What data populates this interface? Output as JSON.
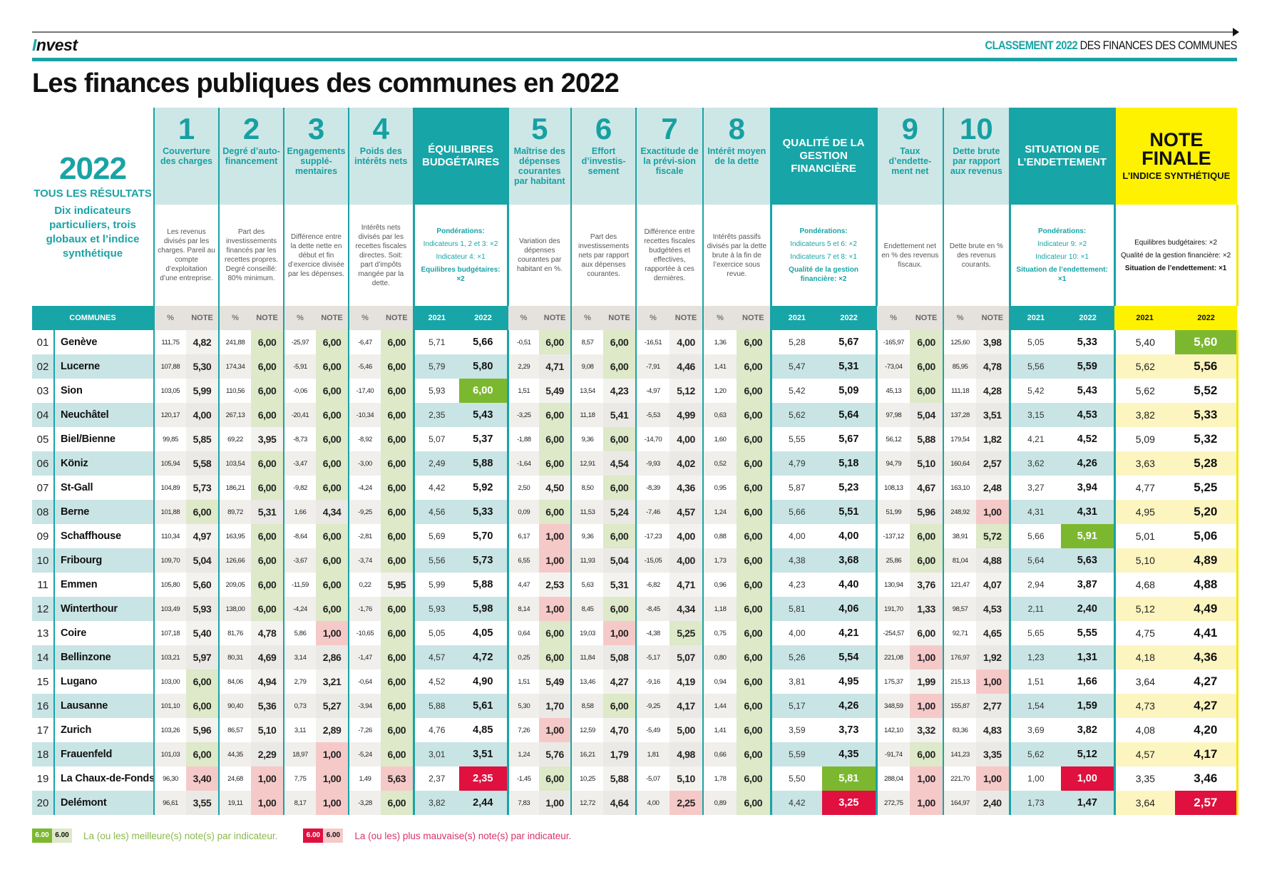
{
  "header": {
    "brand": "Invest",
    "section_highlight": "CLASSEMENT 2022",
    "section_rest": "DES FINANCES DES COMMUNES",
    "title": "Les finances publiques des communes en 2022"
  },
  "intro": {
    "year": "2022",
    "subtitle": "TOUS LES RÉSULTATS",
    "description": "Dix indicateurs particuliers, trois globaux et l’indice synthétique"
  },
  "colors": {
    "teal": "#1aa3a5",
    "yellow": "#fff200",
    "best": "#7cb82f",
    "best_light": "#dde9c8",
    "worst": "#e0103f",
    "worst_light": "#f6c9c9"
  },
  "sub_labels": {
    "communes": "COMMUNES",
    "pct": "%",
    "note": "NOTE",
    "y2021": "2021",
    "y2022": "2022"
  },
  "groups": [
    {
      "type": "ind",
      "num": "1",
      "title": "Couverture des charges",
      "desc": "Les revenus divisés par les charges. Pareil au compte d’exploitation d’une entreprise."
    },
    {
      "type": "ind",
      "num": "2",
      "title": "Degré d’auto-financement",
      "desc": "Part des investissements financés par les recettes propres. Degré conseillé: 80% minimum."
    },
    {
      "type": "ind",
      "num": "3",
      "title": "Engagements supplé-mentaires",
      "desc": "Différence entre la dette nette en début et fin d’exercice divisée par les dépenses."
    },
    {
      "type": "ind",
      "num": "4",
      "title": "Poids des intérêts nets",
      "desc": "Intérêts nets divisés par les recettes fiscales directes. Soit: part d’impôts mangée par la dette."
    },
    {
      "type": "comp",
      "title": "ÉQUILIBRES BUDGÉTAIRES",
      "weights_label": "Pondérations:",
      "weights": [
        "Indicateurs 1, 2 et 3: ×2",
        "Indicateur 4: ×1"
      ],
      "result": "Equilibres budgétaires: ×2"
    },
    {
      "type": "ind",
      "num": "5",
      "title": "Maîtrise des dépenses courantes par habitant",
      "desc": "Variation des dépenses courantes par habitant en %."
    },
    {
      "type": "ind",
      "num": "6",
      "title": "Effort d’investis-sement",
      "desc": "Part des investissements nets par rapport aux dépenses courantes."
    },
    {
      "type": "ind",
      "num": "7",
      "title": "Exactitude de la prévi-sion fiscale",
      "desc": "Différence entre recettes fiscales budgétées et effectives, rapportée à ces dernières."
    },
    {
      "type": "ind",
      "num": "8",
      "title": "Intérêt moyen de la dette",
      "desc": "Intérêts passifs divisés par la dette brute à la fin de l’exercice sous revue."
    },
    {
      "type": "comp",
      "title": "QUALITÉ DE LA GESTION FINANCIÈRE",
      "weights_label": "Pondérations:",
      "weights": [
        "Indicateurs 5 et 6: ×2",
        "Indicateurs 7 et 8: ×1"
      ],
      "result": "Qualité de la gestion financière: ×2"
    },
    {
      "type": "ind",
      "num": "9",
      "title": "Taux d’endette-ment net",
      "desc": "Endettement net en % des revenus fiscaux."
    },
    {
      "type": "ind",
      "num": "10",
      "title": "Dette brute par rapport aux revenus",
      "desc": "Dette brute en % des revenus courants."
    },
    {
      "type": "comp",
      "title": "SITUATION DE L’ENDETTEMENT",
      "weights_label": "Pondérations:",
      "weights": [
        "Indicateur 9: ×2",
        "Indicateur 10: ×1"
      ],
      "result": "Situation de l’endettement: ×1"
    },
    {
      "type": "final",
      "title": "NOTE FINALE",
      "subtitle": "L’INDICE SYNTHÉTIQUE",
      "weights": [
        "Equilibres budgétaires: ×2",
        "Qualité de la gestion financière: ×2"
      ],
      "result": "Situation de l’endettement: ×1"
    }
  ],
  "rows": [
    {
      "rank": "01",
      "name": "Genève",
      "v": [
        "111,75",
        "4,82",
        "241,88",
        "6,00",
        "-25,97",
        "6,00",
        "-6,47",
        "6,00",
        "5,71",
        "5,66",
        "-0,51",
        "6,00",
        "8,57",
        "6,00",
        "-16,51",
        "4,00",
        "1,36",
        "6,00",
        "5,28",
        "5,67",
        "-165,97",
        "6,00",
        "125,60",
        "3,98",
        "5,05",
        "5,33",
        "5,40",
        "5,60"
      ],
      "hl": {
        "3": "b",
        "5": "b",
        "7": "b",
        "11": "b",
        "13": "b",
        "17": "b",
        "21": "b",
        "27": "B"
      }
    },
    {
      "rank": "02",
      "name": "Lucerne",
      "v": [
        "107,88",
        "5,30",
        "174,34",
        "6,00",
        "-5,91",
        "6,00",
        "-5,46",
        "6,00",
        "5,79",
        "5,80",
        "2,29",
        "4,71",
        "9,08",
        "6,00",
        "-7,91",
        "4,46",
        "1,41",
        "6,00",
        "5,47",
        "5,31",
        "-73,04",
        "6,00",
        "85,95",
        "4,78",
        "5,56",
        "5,59",
        "5,62",
        "5,56"
      ],
      "hl": {
        "3": "b",
        "5": "b",
        "7": "b",
        "13": "b",
        "17": "b",
        "21": "b"
      }
    },
    {
      "rank": "03",
      "name": "Sion",
      "v": [
        "103,05",
        "5,99",
        "110,56",
        "6,00",
        "-0,06",
        "6,00",
        "-17,40",
        "6,00",
        "5,93",
        "6,00",
        "1,51",
        "5,49",
        "13,54",
        "4,23",
        "-4,97",
        "5,12",
        "1,20",
        "6,00",
        "5,42",
        "5,09",
        "45,13",
        "6,00",
        "111,18",
        "4,28",
        "5,42",
        "5,43",
        "5,62",
        "5,52"
      ],
      "hl": {
        "3": "b",
        "5": "b",
        "7": "b",
        "9": "B",
        "17": "b",
        "21": "b"
      }
    },
    {
      "rank": "04",
      "name": "Neuchâtel",
      "v": [
        "120,17",
        "4,00",
        "267,13",
        "6,00",
        "-20,41",
        "6,00",
        "-10,34",
        "6,00",
        "2,35",
        "5,43",
        "-3,25",
        "6,00",
        "11,18",
        "5,41",
        "-5,53",
        "4,99",
        "0,63",
        "6,00",
        "5,62",
        "5,64",
        "97,98",
        "5,04",
        "137,28",
        "3,51",
        "3,15",
        "4,53",
        "3,82",
        "5,33"
      ],
      "hl": {
        "3": "b",
        "5": "b",
        "7": "b",
        "11": "b",
        "17": "b"
      }
    },
    {
      "rank": "05",
      "name": "Biel/Bienne",
      "v": [
        "99,85",
        "5,85",
        "69,22",
        "3,95",
        "-8,73",
        "6,00",
        "-8,92",
        "6,00",
        "5,07",
        "5,37",
        "-1,88",
        "6,00",
        "9,36",
        "6,00",
        "-14,70",
        "4,00",
        "1,60",
        "6,00",
        "5,55",
        "5,67",
        "56,12",
        "5,88",
        "179,54",
        "1,82",
        "4,21",
        "4,52",
        "5,09",
        "5,32"
      ],
      "hl": {
        "5": "b",
        "7": "b",
        "11": "b",
        "13": "b",
        "17": "b"
      }
    },
    {
      "rank": "06",
      "name": "Köniz",
      "v": [
        "105,94",
        "5,58",
        "103,54",
        "6,00",
        "-3,47",
        "6,00",
        "-3,00",
        "6,00",
        "2,49",
        "5,88",
        "-1,64",
        "6,00",
        "12,91",
        "4,54",
        "-9,93",
        "4,02",
        "0,52",
        "6,00",
        "4,79",
        "5,18",
        "94,79",
        "5,10",
        "160,64",
        "2,57",
        "3,62",
        "4,26",
        "3,63",
        "5,28"
      ],
      "hl": {
        "3": "b",
        "5": "b",
        "7": "b",
        "11": "b",
        "17": "b"
      }
    },
    {
      "rank": "07",
      "name": "St-Gall",
      "v": [
        "104,89",
        "5,73",
        "186,21",
        "6,00",
        "-9,82",
        "6,00",
        "-4,24",
        "6,00",
        "4,42",
        "5,92",
        "2,50",
        "4,50",
        "8,50",
        "6,00",
        "-8,39",
        "4,36",
        "0,95",
        "6,00",
        "5,87",
        "5,23",
        "108,13",
        "4,67",
        "163,10",
        "2,48",
        "3,27",
        "3,94",
        "4,77",
        "5,25"
      ],
      "hl": {
        "3": "b",
        "5": "b",
        "7": "b",
        "13": "b",
        "17": "b"
      }
    },
    {
      "rank": "08",
      "name": "Berne",
      "v": [
        "101,88",
        "6,00",
        "89,72",
        "5,31",
        "1,66",
        "4,34",
        "-9,25",
        "6,00",
        "4,56",
        "5,33",
        "0,09",
        "6,00",
        "11,53",
        "5,24",
        "-7,46",
        "4,57",
        "1,24",
        "6,00",
        "5,66",
        "5,51",
        "51,99",
        "5,96",
        "248,92",
        "1,00",
        "4,31",
        "4,31",
        "4,95",
        "5,20"
      ],
      "hl": {
        "1": "b",
        "7": "b",
        "11": "b",
        "17": "b",
        "23": "w"
      }
    },
    {
      "rank": "09",
      "name": "Schaffhouse",
      "v": [
        "110,34",
        "4,97",
        "163,95",
        "6,00",
        "-8,64",
        "6,00",
        "-2,81",
        "6,00",
        "5,69",
        "5,70",
        "6,17",
        "1,00",
        "9,36",
        "6,00",
        "-17,23",
        "4,00",
        "0,88",
        "6,00",
        "4,00",
        "4,00",
        "-137,12",
        "6,00",
        "38,91",
        "5,72",
        "5,66",
        "5,91",
        "5,01",
        "5,06"
      ],
      "hl": {
        "3": "b",
        "5": "b",
        "7": "b",
        "11": "w",
        "13": "b",
        "17": "b",
        "21": "b",
        "23": "b",
        "25": "B"
      }
    },
    {
      "rank": "10",
      "name": "Fribourg",
      "v": [
        "109,70",
        "5,04",
        "126,66",
        "6,00",
        "-3,67",
        "6,00",
        "-3,74",
        "6,00",
        "5,56",
        "5,73",
        "6,55",
        "1,00",
        "11,93",
        "5,04",
        "-15,05",
        "4,00",
        "1,73",
        "6,00",
        "4,38",
        "3,68",
        "25,86",
        "6,00",
        "81,04",
        "4,88",
        "5,64",
        "5,63",
        "5,10",
        "4,89"
      ],
      "hl": {
        "3": "b",
        "5": "b",
        "7": "b",
        "11": "w",
        "17": "b",
        "21": "b"
      }
    },
    {
      "rank": "11",
      "name": "Emmen",
      "v": [
        "105,80",
        "5,60",
        "209,05",
        "6,00",
        "-11,59",
        "6,00",
        "0,22",
        "5,95",
        "5,99",
        "5,88",
        "4,47",
        "2,53",
        "5,63",
        "5,31",
        "-6,82",
        "4,71",
        "0,96",
        "6,00",
        "4,23",
        "4,40",
        "130,94",
        "3,76",
        "121,47",
        "4,07",
        "2,94",
        "3,87",
        "4,68",
        "4,88"
      ],
      "hl": {
        "3": "b",
        "5": "b",
        "17": "b"
      }
    },
    {
      "rank": "12",
      "name": "Winterthour",
      "v": [
        "103,49",
        "5,93",
        "138,00",
        "6,00",
        "-4,24",
        "6,00",
        "-1,76",
        "6,00",
        "5,93",
        "5,98",
        "8,14",
        "1,00",
        "8,45",
        "6,00",
        "-8,45",
        "4,34",
        "1,18",
        "6,00",
        "5,81",
        "4,06",
        "191,70",
        "1,33",
        "98,57",
        "4,53",
        "2,11",
        "2,40",
        "5,12",
        "4,49"
      ],
      "hl": {
        "3": "b",
        "5": "b",
        "7": "b",
        "11": "w",
        "13": "b",
        "17": "b"
      }
    },
    {
      "rank": "13",
      "name": "Coire",
      "v": [
        "107,18",
        "5,40",
        "81,76",
        "4,78",
        "5,86",
        "1,00",
        "-10,65",
        "6,00",
        "5,05",
        "4,05",
        "0,64",
        "6,00",
        "19,03",
        "1,00",
        "-4,38",
        "5,25",
        "0,75",
        "6,00",
        "4,00",
        "4,21",
        "-254,57",
        "6,00",
        "92,71",
        "4,65",
        "5,65",
        "5,55",
        "4,75",
        "4,41"
      ],
      "hl": {
        "5": "w",
        "7": "b",
        "11": "b",
        "13": "w",
        "15": "b",
        "17": "b"
      }
    },
    {
      "rank": "14",
      "name": "Bellinzone",
      "v": [
        "103,21",
        "5,97",
        "80,31",
        "4,69",
        "3,14",
        "2,86",
        "-1,47",
        "6,00",
        "4,57",
        "4,72",
        "0,25",
        "6,00",
        "11,84",
        "5,08",
        "-5,17",
        "5,07",
        "0,80",
        "6,00",
        "5,26",
        "5,54",
        "221,08",
        "1,00",
        "176,97",
        "1,92",
        "1,23",
        "1,31",
        "4,18",
        "4,36"
      ],
      "hl": {
        "7": "b",
        "11": "b",
        "17": "b",
        "21": "w"
      }
    },
    {
      "rank": "15",
      "name": "Lugano",
      "v": [
        "103,00",
        "6,00",
        "84,06",
        "4,94",
        "2,79",
        "3,21",
        "-0,64",
        "6,00",
        "4,52",
        "4,90",
        "1,51",
        "5,49",
        "13,46",
        "4,27",
        "-9,16",
        "4,19",
        "0,94",
        "6,00",
        "3,81",
        "4,95",
        "175,37",
        "1,99",
        "215,13",
        "1,00",
        "1,51",
        "1,66",
        "3,64",
        "4,27"
      ],
      "hl": {
        "1": "b",
        "7": "b",
        "17": "b",
        "23": "w"
      }
    },
    {
      "rank": "16",
      "name": "Lausanne",
      "v": [
        "101,10",
        "6,00",
        "90,40",
        "5,36",
        "0,73",
        "5,27",
        "-3,94",
        "6,00",
        "5,88",
        "5,61",
        "5,30",
        "1,70",
        "8,58",
        "6,00",
        "-9,25",
        "4,17",
        "1,44",
        "6,00",
        "5,17",
        "4,26",
        "348,59",
        "1,00",
        "155,87",
        "2,77",
        "1,54",
        "1,59",
        "4,73",
        "4,27"
      ],
      "hl": {
        "1": "b",
        "7": "b",
        "13": "b",
        "17": "b",
        "21": "w"
      }
    },
    {
      "rank": "17",
      "name": "Zurich",
      "v": [
        "103,26",
        "5,96",
        "86,57",
        "5,10",
        "3,11",
        "2,89",
        "-7,26",
        "6,00",
        "4,76",
        "4,85",
        "7,26",
        "1,00",
        "12,59",
        "4,70",
        "-5,49",
        "5,00",
        "1,41",
        "6,00",
        "3,59",
        "3,73",
        "142,10",
        "3,32",
        "83,36",
        "4,83",
        "3,69",
        "3,82",
        "4,08",
        "4,20"
      ],
      "hl": {
        "7": "b",
        "11": "w",
        "17": "b"
      }
    },
    {
      "rank": "18",
      "name": "Frauenfeld",
      "v": [
        "101,03",
        "6,00",
        "44,35",
        "2,29",
        "18,97",
        "1,00",
        "-5,24",
        "6,00",
        "3,01",
        "3,51",
        "1,24",
        "5,76",
        "16,21",
        "1,79",
        "1,81",
        "4,98",
        "0,66",
        "6,00",
        "5,59",
        "4,35",
        "-91,74",
        "6,00",
        "141,23",
        "3,35",
        "5,62",
        "5,12",
        "4,57",
        "4,17"
      ],
      "hl": {
        "1": "b",
        "5": "w",
        "7": "b",
        "17": "b",
        "21": "b"
      }
    },
    {
      "rank": "19",
      "name": "La Chaux-de-Fonds",
      "v": [
        "96,30",
        "3,40",
        "24,68",
        "1,00",
        "7,75",
        "1,00",
        "1,49",
        "5,63",
        "2,37",
        "2,35",
        "-1,45",
        "6,00",
        "10,25",
        "5,88",
        "-5,07",
        "5,10",
        "1,78",
        "6,00",
        "5,50",
        "5,81",
        "288,04",
        "1,00",
        "221,70",
        "1,00",
        "1,00",
        "1,00",
        "3,35",
        "3,46"
      ],
      "hl": {
        "1": "w",
        "3": "w",
        "5": "w",
        "7": "w",
        "9": "W",
        "11": "b",
        "17": "b",
        "19": "B",
        "21": "w",
        "23": "w",
        "25": "W"
      }
    },
    {
      "rank": "20",
      "name": "Delémont",
      "v": [
        "96,61",
        "3,55",
        "19,11",
        "1,00",
        "8,17",
        "1,00",
        "-3,28",
        "6,00",
        "3,82",
        "2,44",
        "7,83",
        "1,00",
        "12,72",
        "4,64",
        "4,00",
        "2,25",
        "0,89",
        "6,00",
        "4,42",
        "3,25",
        "272,75",
        "1,00",
        "164,97",
        "2,40",
        "1,73",
        "1,47",
        "3,64",
        "2,57"
      ],
      "hl": {
        "3": "w",
        "5": "w",
        "7": "b",
        "15": "w",
        "17": "b",
        "19": "W",
        "21": "w",
        "27": "W"
      }
    }
  ],
  "legend": {
    "sample": "6.00",
    "best_text": "La (ou les) meilleure(s) note(s) par indicateur.",
    "worst_text": "La (ou les) plus mauvaise(s) note(s) par indicateur."
  }
}
